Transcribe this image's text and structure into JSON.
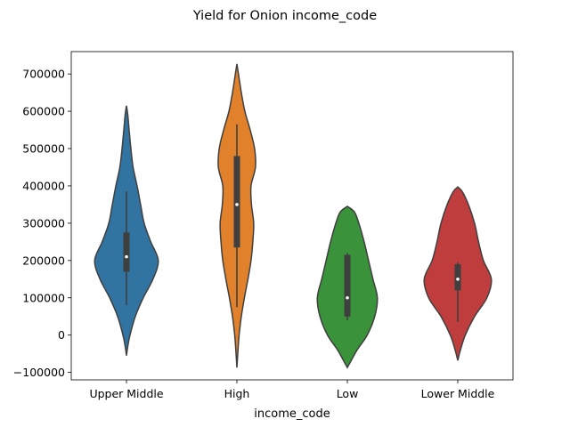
{
  "chart_data": {
    "type": "violin",
    "title": "Yield for Onion income_code",
    "xlabel": "income_code",
    "ylabel": "",
    "ylim": [
      -120000,
      760000
    ],
    "yticks": [
      -100000,
      0,
      100000,
      200000,
      300000,
      400000,
      500000,
      600000,
      700000
    ],
    "ytick_labels": [
      "−100000",
      "0",
      "100000",
      "200000",
      "300000",
      "400000",
      "500000",
      "600000",
      "700000"
    ],
    "categories": [
      "Upper Middle",
      "High",
      "Low",
      "Lower Middle"
    ],
    "grid": false,
    "legend": false,
    "series": [
      {
        "category": "Upper Middle",
        "color": "#3274a1",
        "box": {
          "whisker_low": 80000,
          "q1": 170000,
          "median": 210000,
          "q3": 275000,
          "whisker_high": 385000
        },
        "profile": [
          [
            -55000,
            0.0
          ],
          [
            -30000,
            0.03
          ],
          [
            0,
            0.08
          ],
          [
            50000,
            0.2
          ],
          [
            100000,
            0.38
          ],
          [
            150000,
            0.6
          ],
          [
            200000,
            0.72
          ],
          [
            250000,
            0.55
          ],
          [
            300000,
            0.4
          ],
          [
            350000,
            0.32
          ],
          [
            400000,
            0.24
          ],
          [
            450000,
            0.15
          ],
          [
            500000,
            0.1
          ],
          [
            550000,
            0.06
          ],
          [
            590000,
            0.03
          ],
          [
            615000,
            0.0
          ]
        ]
      },
      {
        "category": "High",
        "color": "#e1812c",
        "box": {
          "whisker_low": 75000,
          "q1": 235000,
          "median": 350000,
          "q3": 480000,
          "whisker_high": 565000
        },
        "profile": [
          [
            -87000,
            0.0
          ],
          [
            -40000,
            0.025
          ],
          [
            0,
            0.05
          ],
          [
            50000,
            0.1
          ],
          [
            100000,
            0.17
          ],
          [
            150000,
            0.25
          ],
          [
            200000,
            0.32
          ],
          [
            250000,
            0.36
          ],
          [
            300000,
            0.38
          ],
          [
            350000,
            0.33
          ],
          [
            400000,
            0.32
          ],
          [
            450000,
            0.42
          ],
          [
            500000,
            0.4
          ],
          [
            550000,
            0.3
          ],
          [
            600000,
            0.18
          ],
          [
            650000,
            0.1
          ],
          [
            700000,
            0.035
          ],
          [
            727000,
            0.0
          ]
        ]
      },
      {
        "category": "Low",
        "color": "#3a923a",
        "box": {
          "whisker_low": 40000,
          "q1": 50000,
          "median": 100000,
          "q3": 215000,
          "whisker_high": 220000
        },
        "profile": [
          [
            -87000,
            0.0
          ],
          [
            -70000,
            0.08
          ],
          [
            -40000,
            0.22
          ],
          [
            0,
            0.45
          ],
          [
            50000,
            0.62
          ],
          [
            100000,
            0.68
          ],
          [
            150000,
            0.58
          ],
          [
            200000,
            0.48
          ],
          [
            250000,
            0.38
          ],
          [
            300000,
            0.26
          ],
          [
            330000,
            0.16
          ],
          [
            345000,
            0.0
          ]
        ]
      },
      {
        "category": "Lower Middle",
        "color": "#c03d3e",
        "box": {
          "whisker_low": 35000,
          "q1": 120000,
          "median": 150000,
          "q3": 190000,
          "whisker_high": 195000
        },
        "profile": [
          [
            -68000,
            0.0
          ],
          [
            -40000,
            0.06
          ],
          [
            0,
            0.17
          ],
          [
            50000,
            0.38
          ],
          [
            100000,
            0.66
          ],
          [
            150000,
            0.76
          ],
          [
            200000,
            0.58
          ],
          [
            250000,
            0.47
          ],
          [
            300000,
            0.38
          ],
          [
            350000,
            0.24
          ],
          [
            385000,
            0.1
          ],
          [
            397000,
            0.0
          ]
        ]
      }
    ]
  }
}
